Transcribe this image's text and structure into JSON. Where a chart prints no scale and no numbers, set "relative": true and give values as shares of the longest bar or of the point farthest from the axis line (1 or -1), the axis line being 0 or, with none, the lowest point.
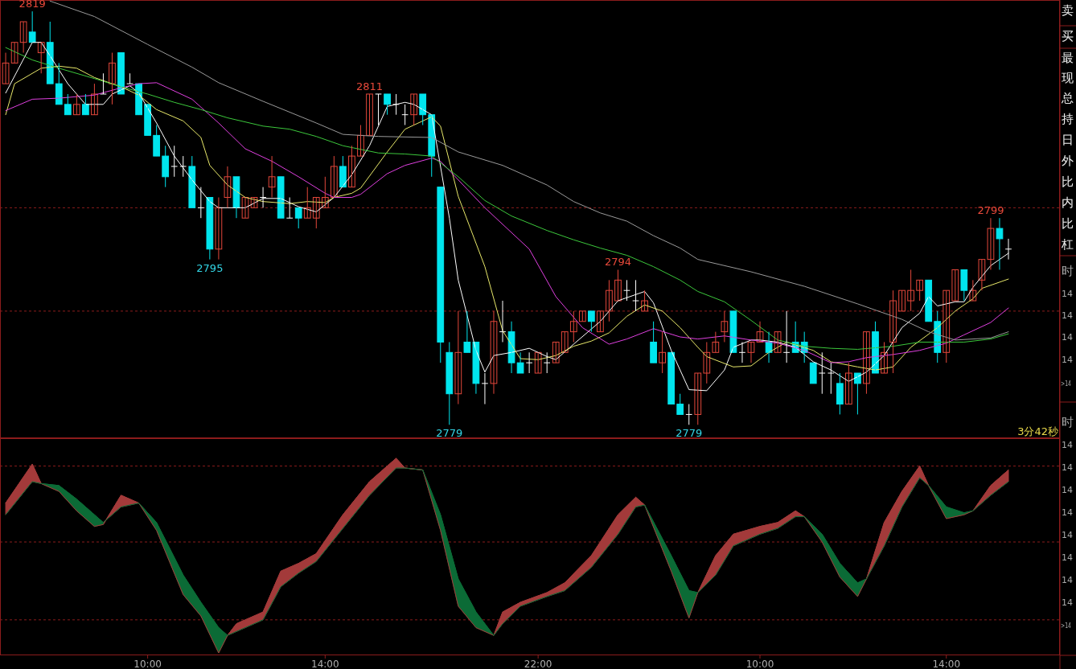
{
  "chart_data": [
    {
      "type": "candlestick",
      "categories": [
        null,
        null,
        null,
        null,
        null,
        null,
        null,
        null,
        null,
        null,
        null,
        null,
        null,
        null,
        null,
        null,
        null,
        null,
        null,
        null,
        null,
        null,
        null,
        null,
        null,
        null,
        null,
        null,
        null,
        null,
        null,
        null,
        null,
        null,
        null,
        null,
        null,
        null,
        null,
        null,
        null,
        null,
        null,
        null,
        null,
        null,
        null,
        null,
        null,
        null,
        null,
        null,
        null,
        null,
        null,
        null,
        null,
        null,
        null,
        null,
        null,
        null,
        null,
        null,
        null,
        null,
        null,
        null,
        null,
        null,
        null,
        null,
        null,
        null,
        null,
        null,
        null,
        null,
        null,
        null,
        null,
        null,
        null,
        null,
        null,
        null,
        null,
        null,
        null,
        null,
        null,
        null,
        null,
        null,
        null,
        null,
        null,
        null,
        null,
        null,
        null,
        null,
        null,
        null,
        null,
        null,
        null,
        null,
        null,
        null,
        null,
        null,
        null,
        null
      ],
      "ohlc": [
        [
          2812,
          2815,
          2812,
          2814
        ],
        [
          2814,
          2816,
          2814,
          2816
        ],
        [
          2816,
          2818,
          2815,
          2818
        ],
        [
          2817,
          2819,
          2816,
          2816
        ],
        [
          2815,
          2816,
          2813,
          2816
        ],
        [
          2816,
          2818,
          2812,
          2812
        ],
        [
          2812,
          2814,
          2810,
          2810
        ],
        [
          2810,
          2811,
          2809,
          2809
        ],
        [
          2809,
          2811,
          2809,
          2810
        ],
        [
          2810,
          2811,
          2809,
          2809
        ],
        [
          2809,
          2812,
          2809,
          2811
        ],
        [
          2811,
          2813,
          2811,
          2811
        ],
        [
          2812,
          2815,
          2810,
          2814
        ],
        [
          2815,
          2815,
          2811,
          2811
        ],
        [
          2812,
          2813,
          2812,
          2812
        ],
        [
          2812,
          2812,
          2809,
          2809
        ],
        [
          2810,
          2810,
          2807,
          2807
        ],
        [
          2807,
          2808,
          2805,
          2805
        ],
        [
          2805,
          2806,
          2802,
          2803
        ],
        [
          2804,
          2806,
          2803,
          2804
        ],
        [
          2804,
          2805,
          2803,
          2804
        ],
        [
          2804,
          2805,
          2800,
          2800
        ],
        [
          2800,
          2802,
          2799,
          2800
        ],
        [
          2801,
          2801,
          2795,
          2796
        ],
        [
          2796,
          2801,
          2795,
          2800
        ],
        [
          2801,
          2804,
          2800,
          2803
        ],
        [
          2803,
          2803,
          2799,
          2800
        ],
        [
          2799,
          2801,
          2799,
          2801
        ],
        [
          2800,
          2801,
          2800,
          2801
        ],
        [
          2801,
          2802,
          2800,
          2801
        ],
        [
          2802,
          2805,
          2801,
          2803
        ],
        [
          2803,
          2803,
          2799,
          2799
        ],
        [
          2799,
          2801,
          2799,
          2799
        ],
        [
          2800,
          2800,
          2798,
          2799
        ],
        [
          2799,
          2802,
          2799,
          2800
        ],
        [
          2799,
          2801,
          2798,
          2801
        ],
        [
          2800,
          2803,
          2800,
          2801
        ],
        [
          2801,
          2805,
          2801,
          2804
        ],
        [
          2804,
          2805,
          2802,
          2802
        ],
        [
          2802,
          2806,
          2802,
          2805
        ],
        [
          2805,
          2808,
          2805,
          2807
        ],
        [
          2807,
          2811,
          2807,
          2811
        ],
        [
          2811,
          2811,
          2808,
          2811
        ],
        [
          2811,
          2811,
          2809,
          2810
        ],
        [
          2810,
          2811,
          2809,
          2810
        ],
        [
          2809,
          2810,
          2808,
          2809
        ],
        [
          2809,
          2811,
          2808,
          2811
        ],
        [
          2811,
          2811,
          2808,
          2809
        ],
        [
          2809,
          2809,
          2803,
          2805
        ],
        [
          2802,
          2802,
          2785,
          2787
        ],
        [
          2786,
          2787,
          2779,
          2782
        ],
        [
          2782,
          2790,
          2781,
          2786
        ],
        [
          2787,
          2790,
          2786,
          2786
        ],
        [
          2787,
          2787,
          2782,
          2783
        ],
        [
          2783,
          2784,
          2781,
          2783
        ],
        [
          2783,
          2790,
          2782,
          2789
        ],
        [
          2788,
          2791,
          2787,
          2788
        ],
        [
          2788,
          2789,
          2784,
          2785
        ],
        [
          2785,
          2786,
          2784,
          2784
        ],
        [
          2785,
          2786,
          2784,
          2785
        ],
        [
          2784,
          2786,
          2784,
          2786
        ],
        [
          2785,
          2786,
          2784,
          2785
        ],
        [
          2785,
          2787,
          2785,
          2787
        ],
        [
          2786,
          2788,
          2786,
          2788
        ],
        [
          2788,
          2790,
          2787,
          2789
        ],
        [
          2789,
          2790,
          2789,
          2790
        ],
        [
          2790,
          2790,
          2788,
          2789
        ],
        [
          2788,
          2790,
          2788,
          2790
        ],
        [
          2790,
          2793,
          2789,
          2792
        ],
        [
          2791,
          2794,
          2791,
          2793
        ],
        [
          2792,
          2793,
          2791,
          2792
        ],
        [
          2791,
          2793,
          2790,
          2791
        ],
        [
          2790,
          2792,
          2790,
          2791
        ],
        [
          2787,
          2789,
          2785,
          2785
        ],
        [
          2785,
          2788,
          2784,
          2786
        ],
        [
          2786,
          2786,
          2781,
          2781
        ],
        [
          2781,
          2782,
          2780,
          2780
        ],
        [
          2780,
          2781,
          2779,
          2780
        ],
        [
          2780,
          2784,
          2779,
          2784
        ],
        [
          2784,
          2787,
          2783,
          2786
        ],
        [
          2786,
          2788,
          2786,
          2787
        ],
        [
          2788,
          2790,
          2787,
          2789
        ],
        [
          2790,
          2790,
          2786,
          2786
        ],
        [
          2786,
          2787,
          2785,
          2786
        ],
        [
          2786,
          2787,
          2785,
          2787
        ],
        [
          2787,
          2789,
          2787,
          2788
        ],
        [
          2787,
          2788,
          2785,
          2786
        ],
        [
          2786,
          2788,
          2786,
          2788
        ],
        [
          2786,
          2790,
          2785,
          2786
        ],
        [
          2787,
          2789,
          2786,
          2786
        ],
        [
          2787,
          2788,
          2785,
          2786
        ],
        [
          2785,
          2785,
          2783,
          2783
        ],
        [
          2784,
          2786,
          2782,
          2784
        ],
        [
          2784,
          2785,
          2782,
          2784
        ],
        [
          2783,
          2784,
          2780,
          2781
        ],
        [
          2781,
          2785,
          2781,
          2784
        ],
        [
          2784,
          2784,
          2780,
          2783
        ],
        [
          2783,
          2788,
          2782,
          2788
        ],
        [
          2788,
          2789,
          2784,
          2784
        ],
        [
          2784,
          2787,
          2784,
          2786
        ],
        [
          2787,
          2792,
          2784,
          2791
        ],
        [
          2790,
          2792,
          2790,
          2792
        ],
        [
          2791,
          2794,
          2790,
          2792
        ],
        [
          2792,
          2793,
          2791,
          2793
        ],
        [
          2793,
          2793,
          2789,
          2789
        ],
        [
          2789,
          2790,
          2785,
          2786
        ],
        [
          2786,
          2792,
          2785,
          2792
        ],
        [
          2791,
          2794,
          2791,
          2794
        ],
        [
          2794,
          2794,
          2791,
          2792
        ],
        [
          2791,
          2793,
          2791,
          2792
        ],
        [
          2793,
          2795,
          2792,
          2795
        ],
        [
          2795,
          2799,
          2794,
          2798
        ],
        [
          2798,
          2799,
          2794,
          2797
        ],
        [
          2796,
          2797,
          2795,
          2796
        ]
      ],
      "value_labels": [
        null,
        null,
        null,
        "2819",
        null,
        null,
        null,
        null,
        null,
        null,
        null,
        null,
        null,
        null,
        null,
        null,
        null,
        null,
        null,
        null,
        null,
        null,
        null,
        "2795",
        null,
        null,
        null,
        null,
        null,
        null,
        null,
        null,
        null,
        null,
        null,
        null,
        null,
        null,
        null,
        null,
        null,
        "2811",
        null,
        null,
        null,
        null,
        null,
        null,
        null,
        null,
        "2779",
        null,
        null,
        null,
        null,
        null,
        null,
        null,
        null,
        null,
        null,
        null,
        null,
        null,
        null,
        null,
        null,
        null,
        null,
        "2794",
        null,
        null,
        null,
        null,
        null,
        null,
        null,
        "2779",
        null,
        null,
        null,
        null,
        null,
        null,
        null,
        null,
        null,
        null,
        null,
        null,
        null,
        null,
        null,
        null,
        null,
        null,
        null,
        null,
        null,
        null,
        null,
        null,
        null,
        null,
        null,
        null,
        null,
        null,
        null,
        null,
        null,
        "2799",
        null,
        null
      ],
      "series": [
        {
          "type": "line",
          "color": "#ffffff",
          "values": [
            2811.1,
            null,
            null,
            2816,
            2816,
            2814.7,
            null,
            2812,
            null,
            2810,
            null,
            2810,
            2811,
            null,
            2811.8,
            2811.1,
            null,
            2808.2,
            null,
            2805,
            null,
            2802.7,
            null,
            2800.6,
            2800,
            null,
            null,
            2800,
            null,
            2800.9,
            null,
            2800.9,
            null,
            2800.1,
            null,
            2799.6,
            null,
            2801,
            null,
            2803.2,
            null,
            2806,
            null,
            2809.8,
            null,
            2810.2,
            2810,
            null,
            2809,
            null,
            2799,
            2793,
            null,
            2786.2,
            2784.1,
            2785.7,
            null,
            2786,
            null,
            2786.4,
            null,
            2785.6,
            2785.3,
            null,
            2786.8,
            null,
            null,
            2789,
            null,
            2791,
            null,
            null,
            2791.9,
            2790.8,
            null,
            2786.2,
            null,
            2782.4,
            null,
            2782.3,
            null,
            2784.3,
            2786.5,
            null,
            2787.2,
            2787.2,
            null,
            2787,
            null,
            2786.5,
            null,
            2785.1,
            null,
            2784.3,
            null,
            2783.2,
            null,
            2784.1,
            null,
            2785.7,
            null,
            2788.4,
            null,
            2789.8,
            2791.4,
            2790.5,
            null,
            2790.9,
            2790.9,
            2792.3,
            null,
            2794.4,
            null,
            2795.6
          ]
        },
        {
          "type": "line",
          "color": "#e8e86a",
          "values": [
            2809,
            2812,
            null,
            null,
            2813.5,
            null,
            2813.7,
            null,
            2813.5,
            null,
            2812.6,
            null,
            null,
            2811.7,
            null,
            2810.9,
            null,
            2809.5,
            null,
            null,
            2808.4,
            null,
            2806.8,
            2804.1,
            null,
            2802.2,
            null,
            2801,
            null,
            2800.6,
            null,
            null,
            2800.4,
            null,
            2800.6,
            null,
            2800.5,
            2801,
            null,
            2801.4,
            2801.9,
            null,
            null,
            2805.4,
            null,
            2807.6,
            null,
            null,
            2808.8,
            2807.9,
            null,
            2801.1,
            null,
            null,
            2794.3,
            null,
            2788.1,
            null,
            2785.4,
            null,
            2785.3,
            null,
            2785.7,
            null,
            2786.6,
            null,
            2787.1,
            null,
            2787.9,
            null,
            2789.5,
            null,
            2790.6,
            null,
            2790,
            null,
            2788.4,
            null,
            2786.5,
            2785.6,
            null,
            null,
            2784.6,
            null,
            2784.7,
            null,
            2786,
            null,
            2787,
            null,
            null,
            2786.2,
            null,
            2785.1,
            null,
            null,
            2784.6,
            null,
            2784.3,
            null,
            2784.6,
            null,
            2786.5,
            null,
            null,
            2788.4,
            null,
            2790,
            null,
            2791.2,
            2792.2,
            null,
            null,
            2793.1
          ]
        },
        {
          "type": "line",
          "color": "#e040e0",
          "values": [
            2809.4,
            null,
            null,
            2810.5,
            null,
            null,
            2810.6,
            null,
            null,
            null,
            2810.9,
            null,
            null,
            2811.6,
            null,
            2812,
            null,
            2812.1,
            null,
            null,
            null,
            2810.5,
            null,
            null,
            2808.2,
            null,
            null,
            2805.7,
            null,
            null,
            2804.5,
            null,
            null,
            2803,
            null,
            null,
            2801.4,
            2801,
            null,
            2801,
            2801.3,
            null,
            null,
            2803.3,
            null,
            2804.1,
            null,
            null,
            2804.8,
            2804.5,
            null,
            null,
            null,
            null,
            2800,
            null,
            null,
            null,
            null,
            2796,
            null,
            null,
            2791.4,
            null,
            null,
            2788.4,
            null,
            null,
            2786.8,
            null,
            2787.3,
            null,
            null,
            2788.3,
            null,
            null,
            2787.5,
            null,
            2787.3,
            null,
            null,
            2787.6,
            null,
            null,
            2787.2,
            null,
            null,
            2786.9,
            null,
            null,
            2786.2,
            null,
            null,
            2785,
            null,
            2785.1,
            null,
            2785.5,
            null,
            null,
            2785.8,
            null,
            null,
            2786.2,
            null,
            null,
            2786.9,
            null,
            2787.7,
            null,
            null,
            2788.9,
            null,
            2790.3
          ]
        },
        {
          "type": "line",
          "color": "#3cc83c",
          "values": [
            2815.5,
            null,
            null,
            2814.3,
            null,
            null,
            2813.5,
            null,
            null,
            null,
            2812.5,
            null,
            null,
            2811.7,
            null,
            null,
            2811,
            null,
            null,
            2810.2,
            null,
            null,
            2809.5,
            null,
            null,
            2808.7,
            null,
            null,
            null,
            2807.9,
            null,
            null,
            2807.6,
            null,
            null,
            2806.9,
            null,
            null,
            2806,
            null,
            null,
            null,
            2805.3,
            null,
            null,
            2805.2,
            null,
            null,
            2805,
            null,
            null,
            2803,
            null,
            null,
            2800.7,
            null,
            null,
            2799.2,
            null,
            null,
            null,
            2797.8,
            null,
            null,
            2796.9,
            null,
            null,
            2796.1,
            null,
            null,
            2795.4,
            null,
            null,
            2794.3,
            null,
            null,
            2793,
            null,
            2791.9,
            null,
            null,
            2790.9,
            null,
            null,
            2789.1,
            null,
            null,
            2787.2,
            null,
            null,
            2786.6,
            null,
            null,
            2786.4,
            null,
            null,
            2786.3,
            null,
            null,
            null,
            2786.6,
            null,
            null,
            2787,
            null,
            null,
            2787,
            null,
            2787,
            null,
            null,
            2787.3,
            null,
            2787.8
          ]
        },
        {
          "type": "line",
          "color": "#9a9a9a",
          "values": [
            null,
            null,
            null,
            null,
            null,
            2820,
            null,
            null,
            null,
            null,
            2818.5,
            null,
            null,
            null,
            null,
            null,
            2815.8,
            null,
            null,
            null,
            null,
            2813.6,
            null,
            null,
            2812.1,
            null,
            null,
            null,
            null,
            2810.3,
            null,
            null,
            null,
            null,
            null,
            2808.2,
            null,
            null,
            2807.1,
            null,
            null,
            null,
            2806.9,
            null,
            null,
            null,
            null,
            null,
            2806.8,
            null,
            null,
            2805.4,
            null,
            null,
            null,
            null,
            2804.1,
            null,
            null,
            null,
            null,
            2802.2,
            null,
            null,
            2800.6,
            null,
            null,
            2799.5,
            null,
            null,
            2798.7,
            null,
            null,
            2797.3,
            null,
            null,
            2796.1,
            null,
            2795,
            null,
            null,
            null,
            null,
            null,
            2793.8,
            null,
            null,
            null,
            null,
            null,
            2792.4,
            null,
            null,
            null,
            null,
            null,
            2790.7,
            null,
            null,
            null,
            null,
            2789.2,
            null,
            null,
            2788,
            null,
            null,
            2787.2,
            null,
            null,
            null,
            2787.4,
            null,
            2788
          ]
        }
      ],
      "ylim": [
        2777.7,
        2820.1
      ],
      "ref_lines": [
        {
          "axis": "y",
          "value": 2800,
          "label": null,
          "color": "#8c1c1c",
          "line_style": "dashed"
        },
        {
          "axis": "y",
          "value": 2790,
          "label": null,
          "color": "#8c1c1c",
          "line_style": "dashed"
        }
      ],
      "annotations": [
        "3分42秒"
      ]
    },
    {
      "type": "line",
      "relative": true,
      "categories": [
        null,
        null,
        null,
        null,
        null,
        null,
        null,
        null,
        null,
        null,
        null,
        null,
        null,
        null,
        null,
        null,
        "10:00",
        null,
        null,
        null,
        null,
        null,
        null,
        null,
        null,
        null,
        null,
        null,
        null,
        null,
        null,
        null,
        null,
        null,
        null,
        null,
        "14:00",
        null,
        null,
        null,
        null,
        null,
        null,
        null,
        null,
        null,
        null,
        null,
        null,
        null,
        null,
        null,
        null,
        null,
        null,
        null,
        null,
        null,
        null,
        null,
        "22:00",
        null,
        null,
        null,
        null,
        null,
        null,
        null,
        null,
        null,
        null,
        null,
        null,
        null,
        null,
        null,
        null,
        null,
        null,
        null,
        null,
        null,
        null,
        null,
        null,
        "10:00",
        null,
        null,
        null,
        null,
        null,
        null,
        null,
        null,
        null,
        null,
        null,
        null,
        null,
        null,
        null,
        null,
        null,
        null,
        null,
        null,
        "14:00",
        null,
        null,
        null,
        null,
        null,
        null,
        null
      ],
      "series": [
        {
          "color": "#a33a3a",
          "upper": [
            0.77,
            null,
            null,
            0.97,
            0.87,
            null,
            null,
            null,
            null,
            null,
            null,
            0.66,
            null,
            0.81,
            null,
            0.77,
            null,
            null,
            null,
            null,
            null,
            null,
            null,
            null,
            null,
            0.09,
            0.15,
            null,
            null,
            0.21,
            null,
            0.42,
            null,
            0.46,
            null,
            0.51,
            null,
            null,
            0.71,
            null,
            null,
            0.88,
            null,
            null,
            1,
            0.95,
            null,
            0.94,
            null,
            null,
            null,
            null,
            null,
            null,
            null,
            0.09,
            0.21,
            null,
            0.26,
            null,
            null,
            0.31,
            null,
            0.36,
            null,
            null,
            0.5,
            null,
            null,
            0.71,
            null,
            0.8,
            0.76,
            null,
            null,
            null,
            null,
            null,
            0.31,
            null,
            0.5,
            null,
            0.61,
            null,
            null,
            0.65,
            null,
            0.67,
            null,
            0.73,
            0.7,
            null,
            null,
            null,
            null,
            null,
            null,
            0.38,
            null,
            0.67,
            null,
            0.83,
            null,
            0.96,
            0.86,
            null,
            null,
            null,
            null,
            0.73,
            null,
            0.86,
            null,
            0.94
          ],
          "lower": [
            0.71,
            null,
            null,
            0.88,
            0.87,
            null,
            null,
            null,
            null,
            null,
            null,
            0.67,
            null,
            0.75,
            null,
            0.77,
            null,
            null,
            null,
            null,
            null,
            null,
            null,
            null,
            null,
            0.09,
            0.11,
            null,
            null,
            0.17,
            null,
            0.34,
            null,
            0.41,
            null,
            0.47,
            null,
            null,
            0.64,
            null,
            null,
            0.81,
            null,
            null,
            0.95,
            0.95,
            null,
            0.94,
            null,
            null,
            null,
            null,
            null,
            null,
            null,
            0.09,
            0.15,
            null,
            0.24,
            null,
            null,
            0.29,
            null,
            0.32,
            null,
            null,
            0.44,
            null,
            null,
            0.61,
            null,
            0.75,
            0.76,
            null,
            null,
            null,
            null,
            null,
            0.31,
            null,
            0.4,
            null,
            0.55,
            null,
            null,
            0.61,
            null,
            0.64,
            null,
            0.7,
            0.7,
            null,
            null,
            null,
            null,
            null,
            null,
            0.38,
            null,
            0.55,
            null,
            0.75,
            null,
            0.9,
            0.86,
            null,
            null,
            null,
            null,
            0.73,
            null,
            0.81,
            null,
            0.88
          ],
          "values": [
            0.77,
            null,
            null,
            0.97,
            0.87,
            null,
            0.83,
            null,
            0.73,
            null,
            0.65,
            0.66,
            null,
            0.81,
            null,
            0.77,
            null,
            0.63,
            null,
            null,
            0.3,
            null,
            0.19,
            null,
            0,
            0.09,
            0.15,
            null,
            null,
            0.21,
            null,
            0.42,
            null,
            0.46,
            null,
            0.51,
            null,
            null,
            0.71,
            null,
            null,
            0.88,
            null,
            null,
            1,
            0.95,
            null,
            0.94,
            null,
            0.63,
            null,
            0.24,
            null,
            0.13,
            null,
            0.09,
            0.21,
            null,
            0.26,
            null,
            null,
            0.31,
            null,
            0.36,
            null,
            null,
            0.5,
            null,
            null,
            0.71,
            null,
            0.8,
            0.76,
            null,
            null,
            0.42,
            null,
            0.18,
            0.31,
            null,
            0.5,
            null,
            0.61,
            null,
            null,
            0.65,
            null,
            0.67,
            null,
            0.73,
            0.7,
            null,
            0.57,
            null,
            0.39,
            null,
            0.29,
            0.38,
            null,
            0.67,
            null,
            0.83,
            null,
            0.96,
            0.86,
            null,
            0.69,
            null,
            0.71,
            0.73,
            null,
            0.86,
            null,
            0.94
          ]
        },
        {
          "color": "#0b6b36",
          "upper": [
            null,
            null,
            null,
            null,
            0.87,
            null,
            0.86,
            null,
            0.79,
            null,
            0.71,
            0.67,
            null,
            null,
            null,
            0.77,
            null,
            0.67,
            null,
            null,
            0.4,
            null,
            0.26,
            null,
            0.13,
            0.09,
            null,
            null,
            null,
            null,
            null,
            null,
            null,
            null,
            null,
            null,
            null,
            null,
            null,
            null,
            null,
            null,
            null,
            null,
            null,
            null,
            null,
            0.94,
            null,
            0.71,
            null,
            0.38,
            null,
            0.21,
            null,
            0.09,
            null,
            null,
            null,
            null,
            null,
            null,
            null,
            null,
            null,
            null,
            null,
            null,
            null,
            null,
            null,
            null,
            0.76,
            null,
            null,
            0.5,
            null,
            0.32,
            0.31,
            null,
            null,
            null,
            null,
            null,
            null,
            null,
            null,
            null,
            null,
            null,
            0.7,
            null,
            0.61,
            null,
            0.46,
            null,
            0.36,
            0.38,
            null,
            null,
            null,
            null,
            null,
            null,
            0.86,
            null,
            0.75,
            null,
            0.72,
            0.73,
            null,
            null,
            null,
            null
          ],
          "lower": [
            null,
            null,
            null,
            null,
            0.87,
            null,
            0.83,
            null,
            0.73,
            null,
            0.65,
            0.66,
            null,
            null,
            null,
            0.77,
            null,
            0.63,
            null,
            null,
            0.3,
            null,
            0.19,
            null,
            0,
            0.09,
            null,
            null,
            null,
            null,
            null,
            null,
            null,
            null,
            null,
            null,
            null,
            null,
            null,
            null,
            null,
            null,
            null,
            null,
            null,
            null,
            null,
            0.94,
            null,
            0.63,
            null,
            0.24,
            null,
            0.13,
            null,
            0.09,
            null,
            null,
            null,
            null,
            null,
            null,
            null,
            null,
            null,
            null,
            null,
            null,
            null,
            null,
            null,
            null,
            0.76,
            null,
            null,
            0.42,
            null,
            0.18,
            0.31,
            null,
            null,
            null,
            null,
            null,
            null,
            null,
            null,
            null,
            null,
            null,
            0.7,
            null,
            0.57,
            null,
            0.39,
            null,
            0.29,
            0.38,
            null,
            null,
            null,
            null,
            null,
            null,
            0.86,
            null,
            0.69,
            null,
            0.71,
            0.73,
            null,
            null,
            null,
            null
          ],
          "values": [
            0.71,
            null,
            null,
            0.88,
            0.87,
            null,
            0.86,
            null,
            0.79,
            null,
            0.71,
            0.67,
            null,
            0.75,
            null,
            0.77,
            null,
            0.67,
            null,
            null,
            0.4,
            null,
            0.26,
            null,
            0.13,
            0.09,
            0.11,
            null,
            null,
            0.17,
            null,
            0.34,
            null,
            0.41,
            null,
            0.47,
            null,
            null,
            0.64,
            null,
            null,
            0.81,
            null,
            null,
            0.95,
            0.95,
            null,
            0.94,
            null,
            0.71,
            null,
            0.38,
            null,
            0.21,
            null,
            0.09,
            0.15,
            null,
            0.24,
            null,
            null,
            0.29,
            null,
            0.32,
            null,
            null,
            0.44,
            null,
            null,
            0.61,
            null,
            0.75,
            0.76,
            null,
            null,
            0.5,
            null,
            0.32,
            0.31,
            null,
            0.4,
            null,
            0.55,
            null,
            null,
            0.61,
            null,
            0.64,
            null,
            0.7,
            0.7,
            null,
            0.61,
            null,
            0.46,
            null,
            0.36,
            0.38,
            null,
            0.55,
            null,
            0.75,
            null,
            0.9,
            0.86,
            null,
            0.75,
            null,
            0.72,
            0.73,
            null,
            0.81,
            null,
            0.88
          ]
        }
      ],
      "ref_lines": [
        {
          "axis": "y",
          "value": 0.96,
          "label": null,
          "color": "#8c1c1c",
          "line_style": "dashed"
        },
        {
          "axis": "y",
          "value": 0.57,
          "label": null,
          "color": "#8c1c1c",
          "line_style": "dashed"
        },
        {
          "axis": "y",
          "value": 0.17,
          "label": null,
          "color": "#8c1c1c",
          "line_style": "dashed"
        }
      ]
    },
    {
      "type": "other",
      "annotations": [
        "卖",
        "买",
        "最",
        "现",
        "总",
        "持",
        "日",
        "外",
        "比",
        "内",
        "比",
        "杠",
        "时",
        "14",
        "14",
        "14",
        "14",
        ">14",
        "时",
        "14",
        "14",
        "14",
        "14",
        "14",
        "14",
        "14",
        "14",
        ">14"
      ]
    }
  ]
}
